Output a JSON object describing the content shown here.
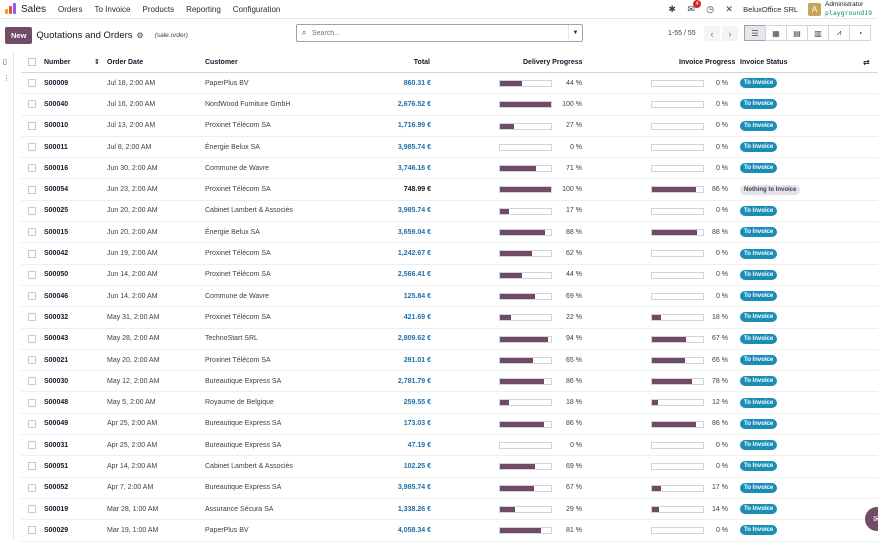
{
  "topbar": {
    "app_name": "Sales",
    "menu": [
      "Orders",
      "To Invoice",
      "Products",
      "Reporting",
      "Configuration"
    ],
    "icons": [
      "bug-icon",
      "chat-icon",
      "clock-icon",
      "tools-icon"
    ],
    "chat_badge": "4",
    "company": "BeluxOffice SRL",
    "avatar_letter": "A",
    "user_name": "Administrator",
    "database": "playground19"
  },
  "control": {
    "new_label": "New",
    "title": "Quotations and Orders",
    "model": "(sale.order)",
    "search_placeholder": "Search...",
    "pager": "1-55 / 55",
    "views": [
      "list",
      "kanban",
      "calendar",
      "pivot",
      "graph",
      "activity"
    ]
  },
  "table": {
    "headers": {
      "number": "Number",
      "order_date": "Order Date",
      "customer": "Customer",
      "total": "Total",
      "delivery": "Delivery Progress",
      "invoice": "Invoice Progress",
      "status": "Invoice Status"
    },
    "rows": [
      {
        "number": "S00009",
        "date": "Jul 18, 2:00 AM",
        "customer": "PaperPlus BV",
        "total": "860.31 €",
        "delivery": 44,
        "delivery_label": "44 %",
        "invoice": 0,
        "invoice_label": "0 %",
        "status": "To Invoice"
      },
      {
        "number": "S00040",
        "date": "Jul 16, 2:00 AM",
        "customer": "NordWood Furniture GmbH",
        "total": "2,676.52 €",
        "delivery": 100,
        "delivery_label": "100 %",
        "invoice": 0,
        "invoice_label": "0 %",
        "status": "To Invoice"
      },
      {
        "number": "S00010",
        "date": "Jul 13, 2:00 AM",
        "customer": "Proxinet Télécom SA",
        "total": "1,716.99 €",
        "delivery": 27,
        "delivery_label": "27 %",
        "invoice": 0,
        "invoice_label": "0 %",
        "status": "To Invoice"
      },
      {
        "number": "S00011",
        "date": "Jul 8, 2:00 AM",
        "customer": "Énergie Belux SA",
        "total": "3,985.74 €",
        "delivery": 0,
        "delivery_label": "0 %",
        "invoice": 0,
        "invoice_label": "0 %",
        "status": "To Invoice"
      },
      {
        "number": "S00016",
        "date": "Jun 30, 2:00 AM",
        "customer": "Commune de Wavre",
        "total": "3,746.16 €",
        "delivery": 71,
        "delivery_label": "71 %",
        "invoice": 0,
        "invoice_label": "0 %",
        "status": "To Invoice"
      },
      {
        "number": "S00054",
        "date": "Jun 23, 2:00 AM",
        "customer": "Proxinet Télécom SA",
        "total": "748.99 €",
        "total_plain": true,
        "delivery": 100,
        "delivery_label": "100 %",
        "invoice": 86,
        "invoice_label": "86 %",
        "status": "Nothing to Invoice"
      },
      {
        "number": "S00025",
        "date": "Jun 20, 2:00 AM",
        "customer": "Cabinet Lambert & Associés",
        "total": "3,985.74 €",
        "delivery": 17,
        "delivery_label": "17 %",
        "invoice": 0,
        "invoice_label": "0 %",
        "status": "To Invoice"
      },
      {
        "number": "S00015",
        "date": "Jun 20, 2:00 AM",
        "customer": "Énergie Belux SA",
        "total": "3,659.04 €",
        "delivery": 88,
        "delivery_label": "88 %",
        "invoice": 88,
        "invoice_label": "88 %",
        "status": "To Invoice"
      },
      {
        "number": "S00042",
        "date": "Jun 19, 2:00 AM",
        "customer": "Proxinet Télécom SA",
        "total": "1,242.67 €",
        "delivery": 62,
        "delivery_label": "62 %",
        "invoice": 0,
        "invoice_label": "0 %",
        "status": "To Invoice"
      },
      {
        "number": "S00050",
        "date": "Jun 14, 2:00 AM",
        "customer": "Proxinet Télécom SA",
        "total": "2,566.41 €",
        "delivery": 44,
        "delivery_label": "44 %",
        "invoice": 0,
        "invoice_label": "0 %",
        "status": "To Invoice"
      },
      {
        "number": "S00046",
        "date": "Jun 14, 2:00 AM",
        "customer": "Commune de Wavre",
        "total": "125.84 €",
        "delivery": 69,
        "delivery_label": "69 %",
        "invoice": 0,
        "invoice_label": "0 %",
        "status": "To Invoice"
      },
      {
        "number": "S00032",
        "date": "May 31, 2:00 AM",
        "customer": "Proxinet Télécom SA",
        "total": "421.69 €",
        "delivery": 22,
        "delivery_label": "22 %",
        "invoice": 18,
        "invoice_label": "18 %",
        "status": "To Invoice"
      },
      {
        "number": "S00043",
        "date": "May 28, 2:00 AM",
        "customer": "TechnoStart SRL",
        "total": "2,809.62 €",
        "delivery": 94,
        "delivery_label": "94 %",
        "invoice": 67,
        "invoice_label": "67 %",
        "status": "To Invoice"
      },
      {
        "number": "S00021",
        "date": "May 20, 2:00 AM",
        "customer": "Proxinet Télécom SA",
        "total": "291.01 €",
        "delivery": 65,
        "delivery_label": "65 %",
        "invoice": 65,
        "invoice_label": "65 %",
        "status": "To Invoice"
      },
      {
        "number": "S00030",
        "date": "May 12, 2:00 AM",
        "customer": "Bureautique Express SA",
        "total": "2,781.79 €",
        "delivery": 86,
        "delivery_label": "86 %",
        "invoice": 78,
        "invoice_label": "78 %",
        "status": "To Invoice"
      },
      {
        "number": "S00048",
        "date": "May 5, 2:00 AM",
        "customer": "Royaume de Belgique",
        "total": "259.55 €",
        "delivery": 18,
        "delivery_label": "18 %",
        "invoice": 12,
        "invoice_label": "12 %",
        "status": "To Invoice"
      },
      {
        "number": "S00049",
        "date": "Apr 25, 2:00 AM",
        "customer": "Bureautique Express SA",
        "total": "173.03 €",
        "delivery": 86,
        "delivery_label": "86 %",
        "invoice": 86,
        "invoice_label": "86 %",
        "status": "To Invoice"
      },
      {
        "number": "S00031",
        "date": "Apr 25, 2:00 AM",
        "customer": "Bureautique Express SA",
        "total": "47.19 €",
        "delivery": 0,
        "delivery_label": "0 %",
        "invoice": 0,
        "invoice_label": "0 %",
        "status": "To Invoice"
      },
      {
        "number": "S00051",
        "date": "Apr 14, 2:00 AM",
        "customer": "Cabinet Lambert & Associés",
        "total": "102.25 €",
        "delivery": 69,
        "delivery_label": "69 %",
        "invoice": 0,
        "invoice_label": "0 %",
        "status": "To Invoice"
      },
      {
        "number": "S00052",
        "date": "Apr 7, 2:00 AM",
        "customer": "Bureautique Express SA",
        "total": "3,985.74 €",
        "delivery": 67,
        "delivery_label": "67 %",
        "invoice": 17,
        "invoice_label": "17 %",
        "status": "To Invoice"
      },
      {
        "number": "S00019",
        "date": "Mar 28, 1:00 AM",
        "customer": "Assurance Sécura SA",
        "total": "1,338.26 €",
        "delivery": 29,
        "delivery_label": "29 %",
        "invoice": 14,
        "invoice_label": "14 %",
        "status": "To Invoice"
      },
      {
        "number": "S00029",
        "date": "Mar 19, 1:00 AM",
        "customer": "PaperPlus BV",
        "total": "4,058.34 €",
        "delivery": 81,
        "delivery_label": "81 %",
        "invoice": 0,
        "invoice_label": "0 %",
        "status": "To Invoice"
      }
    ]
  },
  "colors": {
    "brand": "#714b67",
    "progress": "#6f4b67",
    "badge_to_invoice": "#1a8fb5",
    "link_amount": "#1f6fa8"
  }
}
